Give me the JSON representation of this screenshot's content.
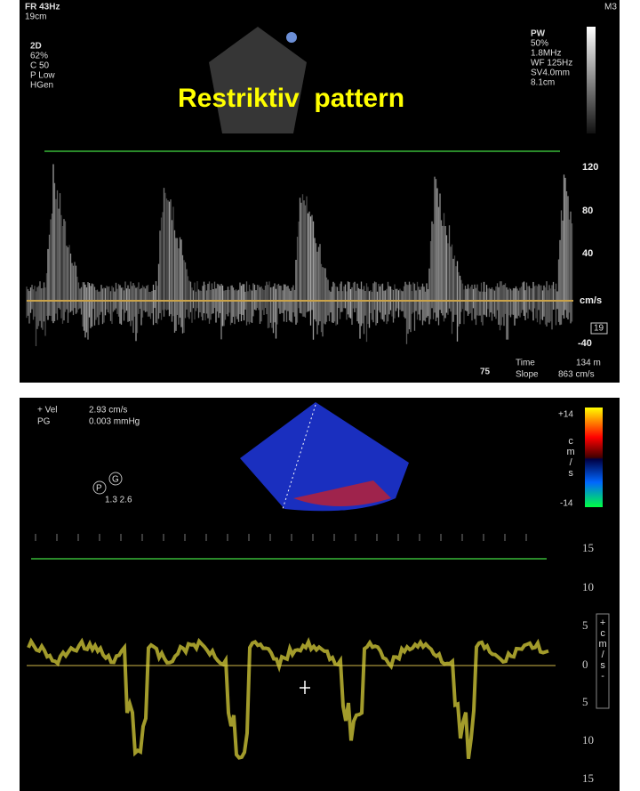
{
  "top_panel": {
    "header": [
      "FR 43Hz",
      "19cm"
    ],
    "mode_2d": [
      "2D",
      "62%",
      "C 50",
      "P Low",
      "HGen"
    ],
    "pw": [
      "PW",
      "50%",
      "1.8MHz",
      "WF 125Hz",
      "SV4.0mm",
      "8.1cm"
    ],
    "probe": "M3",
    "title": "Restriktiv  pattern",
    "scale": [
      "120",
      "80",
      "40",
      "cm/s",
      "-40"
    ],
    "marker": "19",
    "depth": "75",
    "measurements": [
      "Time",
      "134 m",
      "Slope",
      "863 cm/s"
    ]
  },
  "bottom_panel": {
    "readouts": [
      "+ Vel",
      "2.93 cm/s",
      "PG",
      "0.003 mmHg"
    ],
    "probe_icon": [
      "P",
      "G",
      "1.3  2.6"
    ],
    "color_scale": [
      "+14",
      "cm/s",
      "-14"
    ],
    "scale": [
      "15",
      "10",
      "5",
      "0",
      "5",
      "10",
      "15"
    ],
    "unit": "+cm/s-"
  }
}
